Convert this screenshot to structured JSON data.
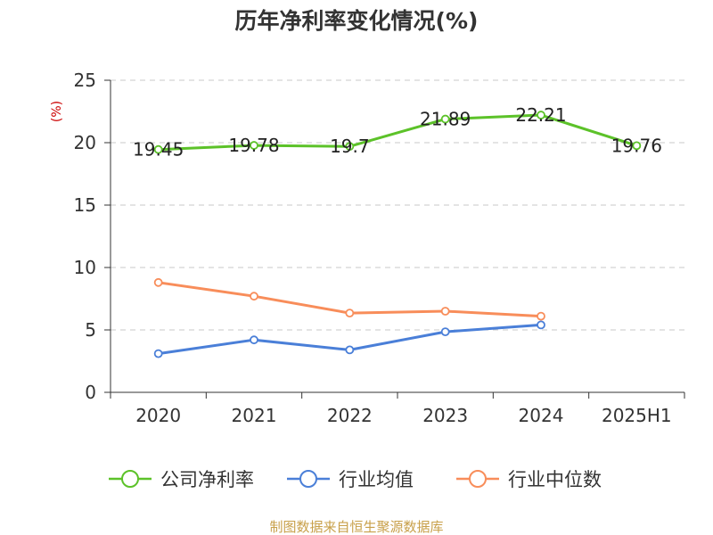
{
  "chart_data": {
    "type": "line",
    "title": "历年净利率变化情况(%)",
    "ylabel": "(%)",
    "categories": [
      "2020",
      "2021",
      "2022",
      "2023",
      "2024",
      "2025H1"
    ],
    "ylim": [
      0,
      25
    ],
    "yticks": [
      0,
      5,
      10,
      15,
      20,
      25
    ],
    "grid": true,
    "legend_position": "bottom",
    "series": [
      {
        "name": "公司净利率",
        "color": "#5cc229",
        "values": [
          19.45,
          19.78,
          19.7,
          21.89,
          22.21,
          19.76
        ],
        "labels": [
          "19.45",
          "19.78",
          "19.7",
          "21.89",
          "22.21",
          "19.76"
        ]
      },
      {
        "name": "行业均值",
        "color": "#4a7fd8",
        "values": [
          3.1,
          4.2,
          3.4,
          4.85,
          5.4,
          null
        ]
      },
      {
        "name": "行业中位数",
        "color": "#f88d5a",
        "values": [
          8.8,
          7.7,
          6.35,
          6.5,
          6.1,
          null
        ]
      }
    ]
  },
  "source": "制图数据来自恒生聚源数据库"
}
